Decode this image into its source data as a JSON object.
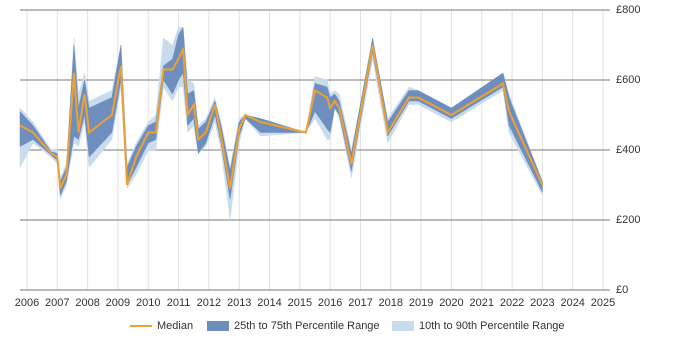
{
  "chart_data": {
    "type": "line",
    "x": [
      2005.77,
      2006.2,
      2006.8,
      2007.0,
      2007.1,
      2007.3,
      2007.55,
      2007.7,
      2007.9,
      2008.05,
      2008.8,
      2009.1,
      2009.3,
      2009.6,
      2010.0,
      2010.25,
      2010.5,
      2010.8,
      2011.0,
      2011.15,
      2011.3,
      2011.5,
      2011.65,
      2011.9,
      2012.2,
      2012.4,
      2012.7,
      2013.0,
      2013.2,
      2013.7,
      2015.2,
      2015.5,
      2015.9,
      2016.0,
      2016.15,
      2016.3,
      2016.7,
      2017.4,
      2017.9,
      2018.6,
      2018.9,
      2020.0,
      2021.7,
      2021.9,
      2023.0
    ],
    "series": [
      {
        "name": "10th to 90th Percentile Range",
        "type": "band",
        "color": "#c9dcee",
        "lower": [
          350,
          420,
          380,
          360,
          260,
          300,
          420,
          410,
          480,
          350,
          430,
          580,
          290,
          330,
          400,
          400,
          580,
          540,
          580,
          580,
          450,
          470,
          390,
          410,
          480,
          400,
          200,
          420,
          490,
          440,
          450,
          490,
          430,
          430,
          520,
          490,
          320,
          660,
          420,
          530,
          530,
          480,
          570,
          450,
          270
        ],
        "upper": [
          520,
          480,
          400,
          400,
          320,
          360,
          720,
          560,
          620,
          540,
          570,
          700,
          360,
          420,
          480,
          500,
          720,
          700,
          750,
          750,
          600,
          590,
          470,
          490,
          550,
          480,
          350,
          490,
          500,
          490,
          450,
          610,
          600,
          560,
          570,
          560,
          400,
          710,
          490,
          580,
          570,
          520,
          620,
          560,
          310
        ]
      },
      {
        "name": "25th to 75th Percentile Range",
        "type": "band",
        "color": "#6e8fbe",
        "lower": [
          410,
          430,
          385,
          370,
          270,
          310,
          440,
          430,
          500,
          380,
          450,
          600,
          300,
          350,
          420,
          430,
          600,
          560,
          600,
          620,
          470,
          490,
          390,
          420,
          500,
          420,
          260,
          440,
          490,
          450,
          450,
          510,
          460,
          450,
          520,
          500,
          340,
          680,
          440,
          540,
          540,
          490,
          580,
          470,
          280
        ],
        "upper": [
          510,
          470,
          395,
          390,
          310,
          350,
          700,
          520,
          600,
          520,
          550,
          700,
          350,
          410,
          470,
          480,
          640,
          660,
          730,
          750,
          560,
          570,
          460,
          480,
          540,
          470,
          340,
          480,
          500,
          490,
          450,
          590,
          580,
          550,
          560,
          540,
          390,
          720,
          480,
          570,
          570,
          520,
          620,
          550,
          310
        ]
      },
      {
        "name": "Median",
        "color": "#f0a030",
        "values": [
          470,
          450,
          390,
          380,
          290,
          330,
          620,
          450,
          560,
          450,
          500,
          640,
          300,
          380,
          450,
          450,
          630,
          630,
          660,
          690,
          500,
          530,
          430,
          450,
          530,
          440,
          290,
          460,
          500,
          480,
          450,
          570,
          550,
          520,
          540,
          520,
          360,
          700,
          450,
          550,
          550,
          500,
          590,
          510,
          300
        ]
      }
    ],
    "xlim": [
      2005.77,
      2025.23
    ],
    "xticks": [
      2006,
      2007,
      2008,
      2009,
      2010,
      2011,
      2012,
      2013,
      2014,
      2015,
      2016,
      2017,
      2018,
      2019,
      2020,
      2021,
      2022,
      2023,
      2024,
      2025
    ],
    "ylim": [
      0,
      800
    ],
    "yticks": [
      {
        "value": 0,
        "label": "£0"
      },
      {
        "value": 200,
        "label": "£200"
      },
      {
        "value": 400,
        "label": "£400"
      },
      {
        "value": 600,
        "label": "£600"
      },
      {
        "value": 800,
        "label": "£800"
      }
    ],
    "grid": true
  }
}
